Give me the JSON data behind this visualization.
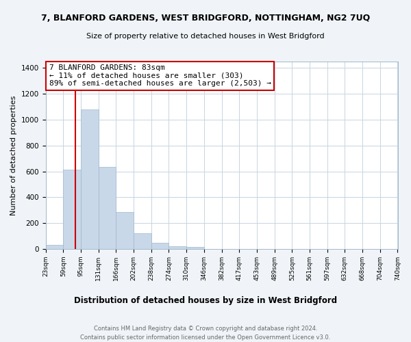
{
  "title": "7, BLANFORD GARDENS, WEST BRIDGFORD, NOTTINGHAM, NG2 7UQ",
  "subtitle": "Size of property relative to detached houses in West Bridgford",
  "xlabel": "Distribution of detached houses by size in West Bridgford",
  "ylabel": "Number of detached properties",
  "bin_edges": [
    23,
    59,
    95,
    131,
    166,
    202,
    238,
    274,
    310,
    346,
    382,
    417,
    453,
    489,
    525,
    561,
    597,
    632,
    668,
    704,
    740
  ],
  "bin_counts": [
    30,
    615,
    1080,
    635,
    285,
    120,
    48,
    20,
    15,
    0,
    0,
    0,
    0,
    0,
    0,
    0,
    0,
    0,
    0,
    0
  ],
  "bar_color": "#c8d8e8",
  "bar_edge_color": "#a0b8cc",
  "property_value": 83,
  "vline_color": "#cc0000",
  "annotation_line1": "7 BLANFORD GARDENS: 83sqm",
  "annotation_line2": "← 11% of detached houses are smaller (303)",
  "annotation_line3": "89% of semi-detached houses are larger (2,503) →",
  "annotation_box_color": "#ffffff",
  "annotation_box_edge_color": "#cc0000",
  "ylim": [
    0,
    1450
  ],
  "yticks": [
    0,
    200,
    400,
    600,
    800,
    1000,
    1200,
    1400
  ],
  "footer_line1": "Contains HM Land Registry data © Crown copyright and database right 2024.",
  "footer_line2": "Contains public sector information licensed under the Open Government Licence v3.0.",
  "tick_labels": [
    "23sqm",
    "59sqm",
    "95sqm",
    "131sqm",
    "166sqm",
    "202sqm",
    "238sqm",
    "274sqm",
    "310sqm",
    "346sqm",
    "382sqm",
    "417sqm",
    "453sqm",
    "489sqm",
    "525sqm",
    "561sqm",
    "597sqm",
    "632sqm",
    "668sqm",
    "704sqm",
    "740sqm"
  ],
  "bg_color": "#f0f4f8",
  "plot_bg_color": "#ffffff",
  "grid_color": "#c8d4e0"
}
